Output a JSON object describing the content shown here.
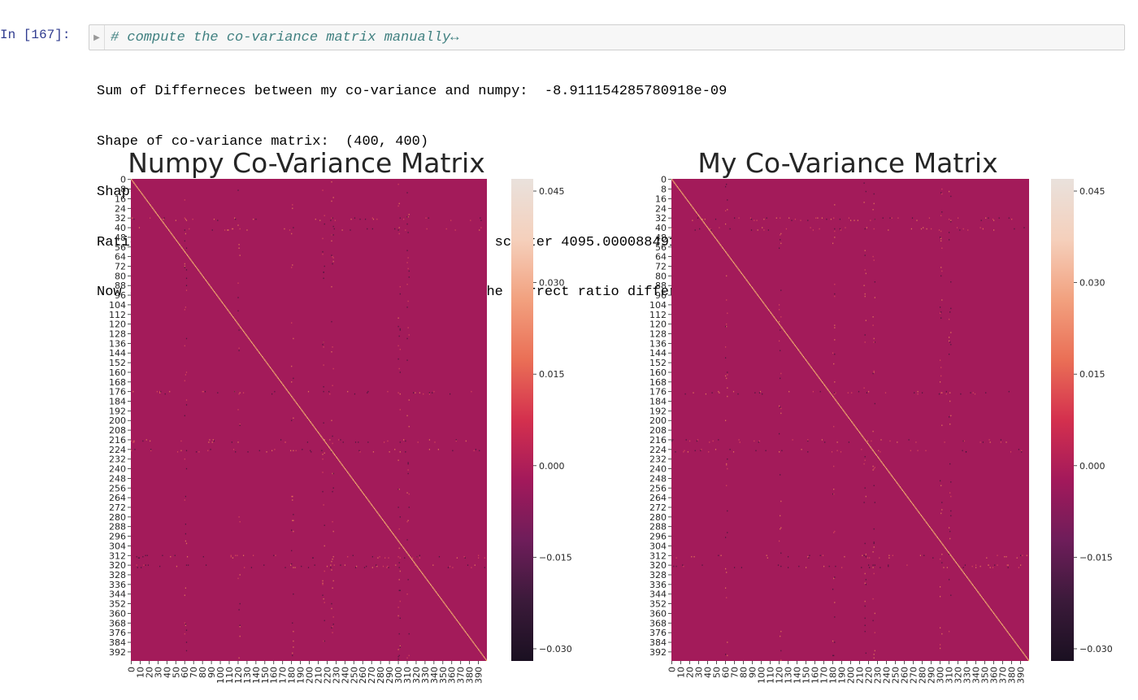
{
  "cell": {
    "prompt": "In [167]:",
    "collapse_icon": "triangle-right-icon",
    "code": "# compute the co-variance matrix manually↔"
  },
  "output_lines": [
    "Sum of Differneces between my co-variance and numpy:  -8.911154285780918e-09",
    "Shape of co-variance matrix:  (400, 400)",
    "Shape of scatter Matrix:  (400, 400)",
    "Ratio Difference between co-variance matrix and scatter 4095.000088491706",
    "Now after subtracting the mean we can observe the correct ratio differnece."
  ],
  "chart_data": [
    {
      "type": "heatmap",
      "title": "Numpy Co-Variance Matrix",
      "matrix_shape": [
        400,
        400
      ],
      "background_value": 0.0,
      "diagonal_value": 0.02,
      "y_ticks": [
        "0",
        "8",
        "16",
        "24",
        "32",
        "40",
        "48",
        "56",
        "64",
        "72",
        "80",
        "88",
        "96",
        "104",
        "112",
        "120",
        "128",
        "136",
        "144",
        "152",
        "160",
        "168",
        "176",
        "184",
        "192",
        "200",
        "208",
        "216",
        "224",
        "232",
        "240",
        "248",
        "256",
        "264",
        "272",
        "280",
        "288",
        "296",
        "304",
        "312",
        "320",
        "328",
        "336",
        "344",
        "352",
        "360",
        "368",
        "376",
        "384",
        "392"
      ],
      "x_ticks": [
        "0",
        "10",
        "20",
        "30",
        "40",
        "50",
        "60",
        "70",
        "80",
        "90",
        "100",
        "110",
        "120",
        "130",
        "140",
        "150",
        "160",
        "170",
        "180",
        "190",
        "200",
        "210",
        "220",
        "230",
        "240",
        "250",
        "260",
        "270",
        "280",
        "290",
        "300",
        "310",
        "320",
        "330",
        "340",
        "350",
        "360",
        "370",
        "380",
        "390"
      ],
      "colorbar": {
        "vmin": -0.032,
        "vmax": 0.047,
        "ticks": [
          "0.045",
          "0.030",
          "0.015",
          "0.000",
          "−0.015",
          "−0.030"
        ],
        "tick_values": [
          0.045,
          0.03,
          0.015,
          0.0,
          -0.015,
          -0.03
        ]
      },
      "colormap_stops": [
        "#1a1021",
        "#3b1a3a",
        "#6e1d5a",
        "#a3195b",
        "#d4304e",
        "#ea6f56",
        "#f2a17f",
        "#f5d0bc",
        "#e9e1dc"
      ],
      "cell_color": "#a31b5a",
      "diagonal_color": "#f5b06a"
    },
    {
      "type": "heatmap",
      "title": "My Co-Variance Matrix",
      "matrix_shape": [
        400,
        400
      ],
      "background_value": 0.0,
      "diagonal_value": 0.02,
      "y_ticks": [
        "0",
        "8",
        "16",
        "24",
        "32",
        "40",
        "48",
        "56",
        "64",
        "72",
        "80",
        "88",
        "96",
        "104",
        "112",
        "120",
        "128",
        "136",
        "144",
        "152",
        "160",
        "168",
        "176",
        "184",
        "192",
        "200",
        "208",
        "216",
        "224",
        "232",
        "240",
        "248",
        "256",
        "264",
        "272",
        "280",
        "288",
        "296",
        "304",
        "312",
        "320",
        "328",
        "336",
        "344",
        "352",
        "360",
        "368",
        "376",
        "384",
        "392"
      ],
      "x_ticks": [
        "0",
        "10",
        "20",
        "30",
        "40",
        "50",
        "60",
        "70",
        "80",
        "90",
        "100",
        "110",
        "120",
        "130",
        "140",
        "150",
        "160",
        "170",
        "180",
        "190",
        "200",
        "210",
        "220",
        "230",
        "240",
        "250",
        "260",
        "270",
        "280",
        "290",
        "300",
        "310",
        "320",
        "330",
        "340",
        "350",
        "360",
        "370",
        "380",
        "390"
      ],
      "colorbar": {
        "vmin": -0.032,
        "vmax": 0.047,
        "ticks": [
          "0.045",
          "0.030",
          "0.015",
          "0.000",
          "−0.015",
          "−0.030"
        ],
        "tick_values": [
          0.045,
          0.03,
          0.015,
          0.0,
          -0.015,
          -0.03
        ]
      },
      "colormap_stops": [
        "#1a1021",
        "#3b1a3a",
        "#6e1d5a",
        "#a3195b",
        "#d4304e",
        "#ea6f56",
        "#f2a17f",
        "#f5d0bc",
        "#e9e1dc"
      ],
      "cell_color": "#a31b5a",
      "diagonal_color": "#f5b06a"
    }
  ]
}
